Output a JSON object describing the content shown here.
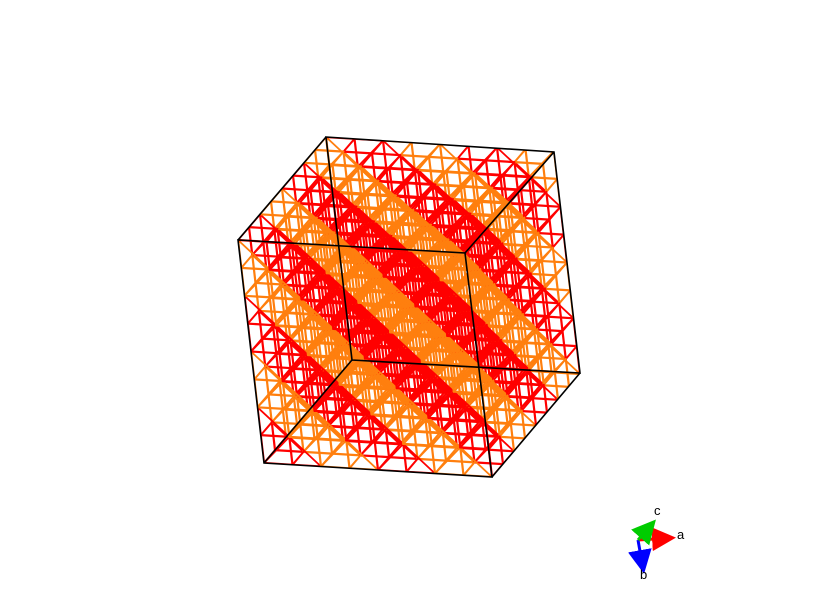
{
  "structure": {
    "lattice_colors": [
      "#ff0000",
      "#ff7f0e"
    ],
    "cell_edge_color": "#000000"
  },
  "axes": {
    "a": {
      "label": "a",
      "color": "#ff0000"
    },
    "b": {
      "label": "b",
      "color": "#0000ff"
    },
    "c": {
      "label": "c",
      "color": "#00cc00"
    }
  }
}
